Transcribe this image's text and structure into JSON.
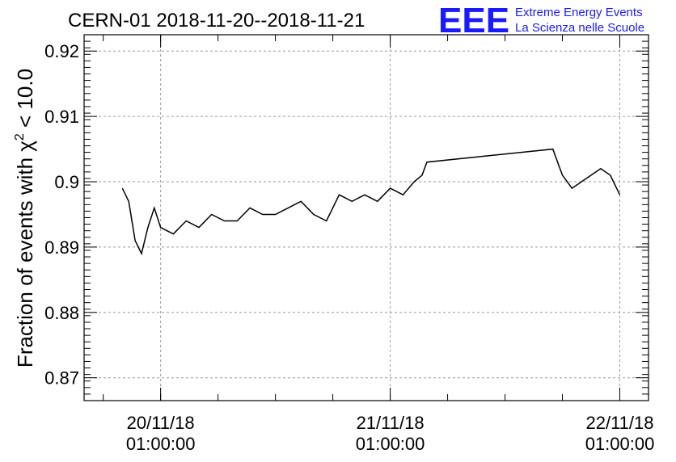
{
  "header": {
    "title": "CERN-01 2018-11-20--2018-11-21",
    "logo_text": "EEE",
    "logo_line1": "Extreme Energy Events",
    "logo_line2": "La Scienza nelle Scuole",
    "logo_color": "#1a1aff"
  },
  "chart_data": {
    "type": "line",
    "title": "CERN-01 2018-11-20--2018-11-21",
    "xlabel": "",
    "ylabel": "Fraction of events with χ² < 10.0",
    "ylabel_parts": {
      "pre": "Fraction of events with ",
      "chi": "χ",
      "sup": "2",
      "post": " < 10.0"
    },
    "xlim": [
      "2018-11-19 17:00",
      "2018-11-22 04:00"
    ],
    "ylim": [
      0.8665,
      0.9225
    ],
    "grid": true,
    "line_color": "#000000",
    "x_ticks": [
      {
        "at": "2018-11-20 01:00:00",
        "line1": "20/11/18",
        "line2": "01:00:00"
      },
      {
        "at": "2018-11-21 01:00:00",
        "line1": "21/11/18",
        "line2": "01:00:00"
      },
      {
        "at": "2018-11-22 01:00:00",
        "line1": "22/11/18",
        "line2": "01:00:00"
      }
    ],
    "y_ticks": [
      {
        "value": 0.87,
        "label": "0.87"
      },
      {
        "value": 0.88,
        "label": "0.88"
      },
      {
        "value": 0.89,
        "label": "0.89"
      },
      {
        "value": 0.9,
        "label": "0.9"
      },
      {
        "value": 0.91,
        "label": "0.91"
      },
      {
        "value": 0.92,
        "label": "0.92"
      }
    ],
    "series": [
      {
        "x": [
          "2018-11-19 21:00",
          "2018-11-19 21:40",
          "2018-11-19 22:20",
          "2018-11-19 23:00",
          "2018-11-19 23:40",
          "2018-11-20 00:20",
          "2018-11-20 01:00",
          "2018-11-20 02:20",
          "2018-11-20 03:40",
          "2018-11-20 05:00",
          "2018-11-20 06:20",
          "2018-11-20 07:40",
          "2018-11-20 09:00",
          "2018-11-20 10:20",
          "2018-11-20 11:40",
          "2018-11-20 13:00",
          "2018-11-20 14:20",
          "2018-11-20 15:40",
          "2018-11-20 17:00",
          "2018-11-20 18:20",
          "2018-11-20 19:40",
          "2018-11-20 21:00",
          "2018-11-20 22:20",
          "2018-11-20 23:40",
          "2018-11-21 01:00",
          "2018-11-21 02:20",
          "2018-11-21 03:30",
          "2018-11-21 04:20",
          "2018-11-21 04:50",
          "2018-11-21 18:00",
          "2018-11-21 19:00",
          "2018-11-21 20:00",
          "2018-11-21 21:00",
          "2018-11-21 22:00",
          "2018-11-21 23:00",
          "2018-11-22 00:00",
          "2018-11-22 01:00"
        ],
        "y": [
          0.899,
          0.897,
          0.891,
          0.889,
          0.893,
          0.896,
          0.893,
          0.892,
          0.894,
          0.893,
          0.895,
          0.894,
          0.894,
          0.896,
          0.895,
          0.895,
          0.896,
          0.897,
          0.895,
          0.894,
          0.898,
          0.897,
          0.898,
          0.897,
          0.899,
          0.898,
          0.9,
          0.901,
          0.903,
          0.905,
          0.901,
          0.899,
          0.9,
          0.901,
          0.902,
          0.901,
          0.898
        ]
      }
    ]
  }
}
